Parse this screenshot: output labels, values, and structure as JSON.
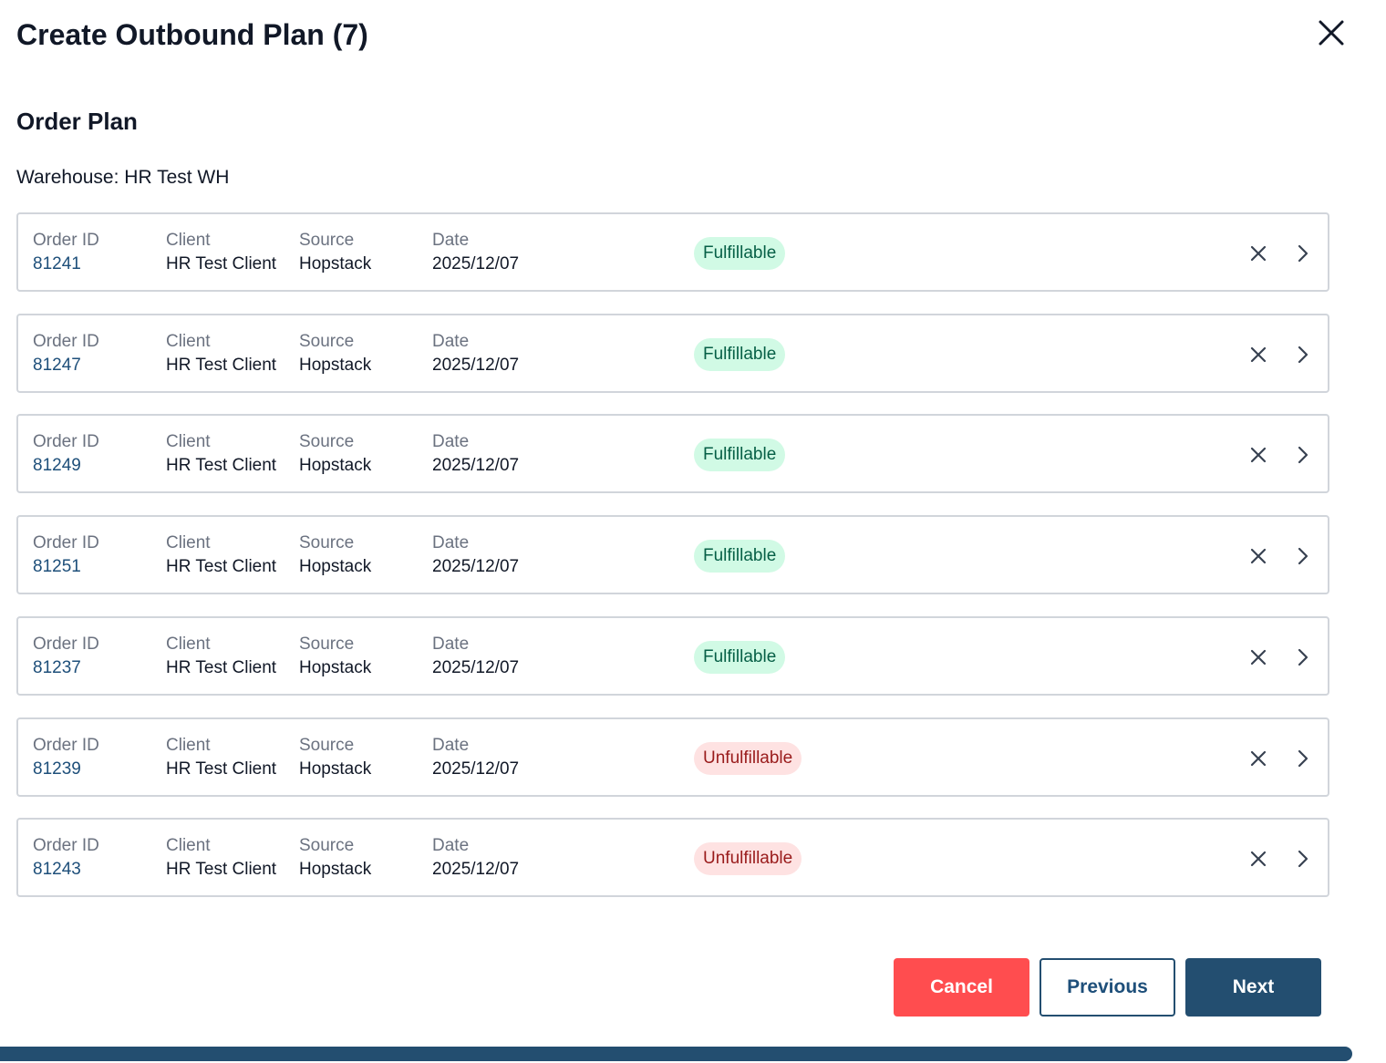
{
  "header": {
    "title": "Create Outbound Plan (7)"
  },
  "section": {
    "title": "Order Plan",
    "warehouse": "Warehouse: HR Test WH"
  },
  "columns": [
    "Order ID",
    "Client",
    "Source",
    "Date"
  ],
  "orders": [
    {
      "order_id": "81241",
      "client": "HR Test Client",
      "source": "Hopstack",
      "date": "2025/12/07",
      "status": "Fulfillable",
      "status_color": "#065f46",
      "status_background": "#d1fae5"
    },
    {
      "order_id": "81247",
      "client": "HR Test Client",
      "source": "Hopstack",
      "date": "2025/12/07",
      "status": "Fulfillable",
      "status_color": "#065f46",
      "status_background": "#d1fae5"
    },
    {
      "order_id": "81249",
      "client": "HR Test Client",
      "source": "Hopstack",
      "date": "2025/12/07",
      "status": "Fulfillable",
      "status_color": "#065f46",
      "status_background": "#d1fae5"
    },
    {
      "order_id": "81251",
      "client": "HR Test Client",
      "source": "Hopstack",
      "date": "2025/12/07",
      "status": "Fulfillable",
      "status_color": "#065f46",
      "status_background": "#d1fae5"
    },
    {
      "order_id": "81237",
      "client": "HR Test Client",
      "source": "Hopstack",
      "date": "2025/12/07",
      "status": "Fulfillable",
      "status_color": "#065f46",
      "status_background": "#d1fae5"
    },
    {
      "order_id": "81239",
      "client": "HR Test Client",
      "source": "Hopstack",
      "date": "2025/12/07",
      "status": "Unfulfillable",
      "status_color": "#991b1b",
      "status_background": "#fee2e2"
    },
    {
      "order_id": "81243",
      "client": "HR Test Client",
      "source": "Hopstack",
      "date": "2025/12/07",
      "status": "Unfulfillable",
      "status_color": "#991b1b",
      "status_background": "#fee2e2"
    }
  ],
  "buttons": {
    "cancel": "Cancel",
    "previous": "Previous",
    "next": "Next"
  }
}
